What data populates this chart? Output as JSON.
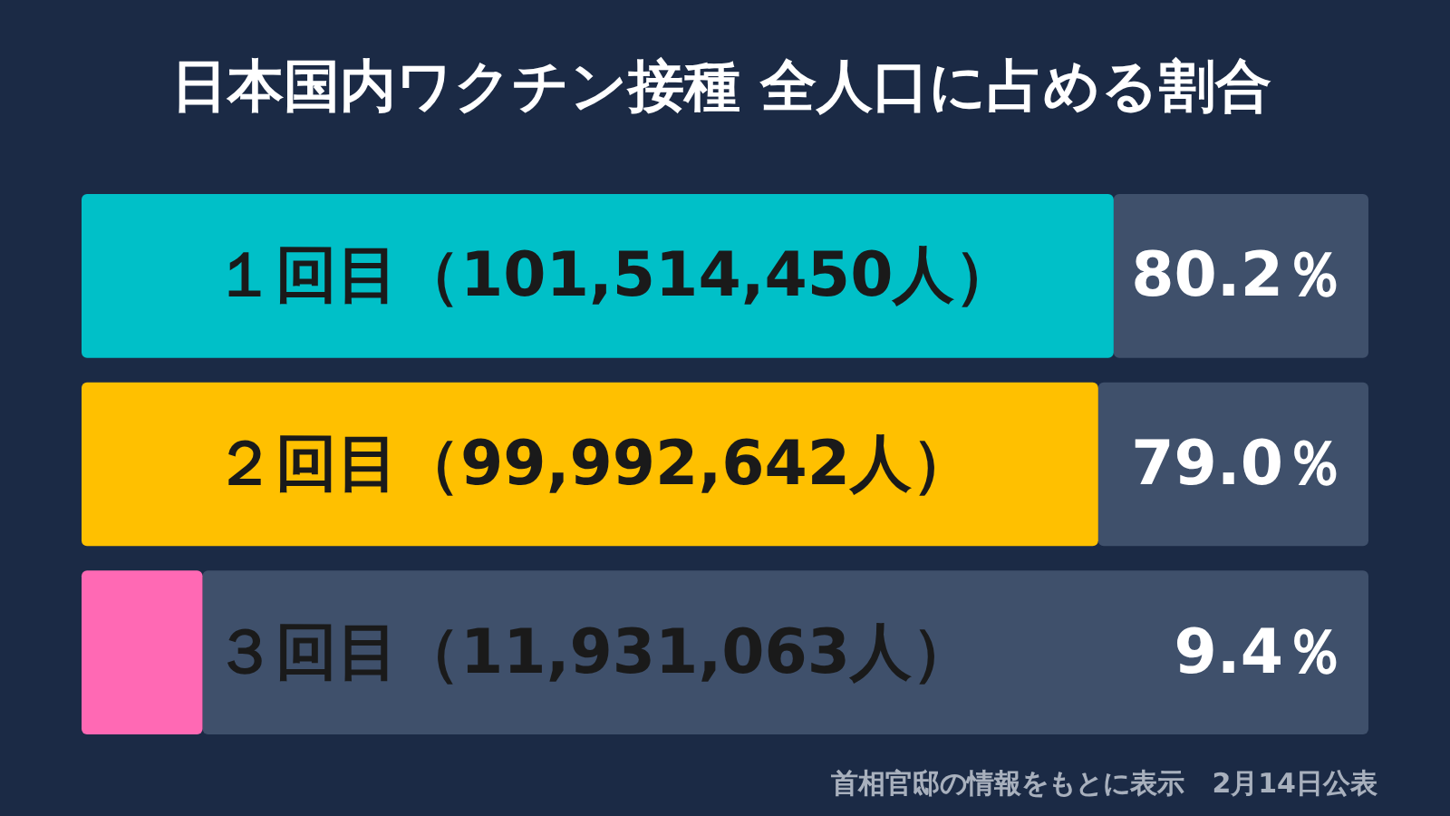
{
  "chart_data": {
    "type": "bar",
    "orientation": "horizontal",
    "title": "日本国内ワクチン接種 全人口に占める割合",
    "categories": [
      "１回目（101,514,450人）",
      "２回目（99,992,642人）",
      "３回目（11,931,063人）"
    ],
    "values": [
      80.2,
      79.0,
      9.4
    ],
    "colors": [
      "#00c0c8",
      "#ffc000",
      "#ff69b4"
    ],
    "value_labels": [
      "80.2％",
      "79.0％",
      "9.4％"
    ],
    "xlim": [
      0,
      100
    ],
    "annotations": [
      "首相官邸の情報をもとに表示　2月14日公表"
    ]
  }
}
